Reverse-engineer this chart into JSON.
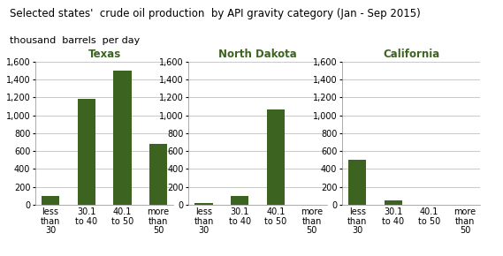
{
  "title": "Selected states'  crude oil production  by API gravity category (Jan - Sep 2015)",
  "subtitle": "thousand  barrels  per day",
  "states": [
    "Texas",
    "North Dakota",
    "California"
  ],
  "categories": [
    "less\nthan\n30",
    "30.1\nto 40",
    "40.1\nto 50",
    "more\nthan\n50"
  ],
  "values": {
    "Texas": [
      100,
      1185,
      1500,
      680
    ],
    "North Dakota": [
      15,
      95,
      1060,
      0
    ],
    "California": [
      500,
      45,
      0,
      0
    ]
  },
  "bar_color": "#3d6321",
  "title_color": "#000000",
  "state_title_color": "#3d6321",
  "ylim": [
    0,
    1600
  ],
  "yticks": [
    0,
    200,
    400,
    600,
    800,
    1000,
    1200,
    1400,
    1600
  ],
  "background_color": "#ffffff",
  "grid_color": "#c0c0c0",
  "title_fontsize": 8.5,
  "subtitle_fontsize": 8.0,
  "state_fontsize": 8.5,
  "tick_fontsize": 7.0,
  "bar_width": 0.5
}
